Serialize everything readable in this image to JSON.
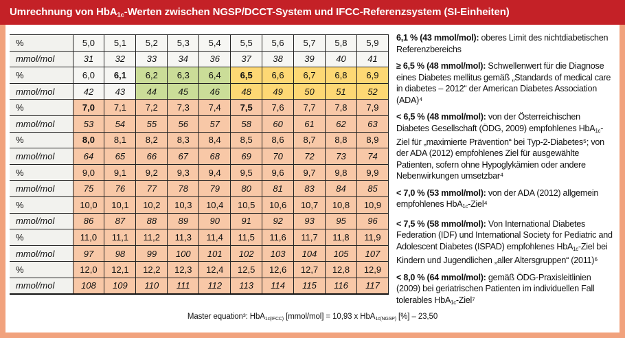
{
  "colors": {
    "header_red": "#c42127",
    "frame_salmon": "#f1a27d",
    "cell_green": "#cbdd98",
    "cell_orange": "#fdd874",
    "cell_salmon": "#f8c8a7",
    "label_gray": "#f2f2ee",
    "cell_plain": "#f6f6f3"
  },
  "title_segments": [
    {
      "t": "Umrechnung von HbA"
    },
    {
      "t": "1c",
      "sub": true
    },
    {
      "t": "-Werten zwischen NGSP/DCCT-System und IFCC-Referenzsystem (SI-Einheiten)"
    }
  ],
  "table": {
    "unit_percent": "%",
    "unit_mmol": "mmol/mol",
    "rows": [
      {
        "label": "%",
        "italic": false,
        "bg": "w",
        "bold": [],
        "values": [
          "5,0",
          "5,1",
          "5,2",
          "5,3",
          "5,4",
          "5,5",
          "5,6",
          "5,7",
          "5,8",
          "5,9"
        ]
      },
      {
        "label": "mmol/mol",
        "italic": true,
        "bg": "w",
        "bold": [],
        "values": [
          "31",
          "32",
          "33",
          "34",
          "36",
          "37",
          "38",
          "39",
          "40",
          "41"
        ]
      },
      {
        "label": "%",
        "italic": false,
        "bg": [
          "w",
          "w",
          "g",
          "g",
          "g",
          "o",
          "o",
          "o",
          "o",
          "o"
        ],
        "bold": [
          1,
          5
        ],
        "values": [
          "6,0",
          "6,1",
          "6,2",
          "6,3",
          "6,4",
          "6,5",
          "6,6",
          "6,7",
          "6,8",
          "6,9"
        ]
      },
      {
        "label": "mmol/mol",
        "italic": true,
        "bg": [
          "w",
          "w",
          "g",
          "g",
          "g",
          "o",
          "o",
          "o",
          "o",
          "o"
        ],
        "bold": [],
        "values": [
          "42",
          "43",
          "44",
          "45",
          "46",
          "48",
          "49",
          "50",
          "51",
          "52"
        ]
      },
      {
        "label": "%",
        "italic": false,
        "bg": "s",
        "bold": [
          0,
          5
        ],
        "values": [
          "7,0",
          "7,1",
          "7,2",
          "7,3",
          "7,4",
          "7,5",
          "7,6",
          "7,7",
          "7,8",
          "7,9"
        ]
      },
      {
        "label": "mmol/mol",
        "italic": true,
        "bg": "s",
        "bold": [],
        "values": [
          "53",
          "54",
          "55",
          "56",
          "57",
          "58",
          "60",
          "61",
          "62",
          "63"
        ]
      },
      {
        "label": "%",
        "italic": false,
        "bg": "s",
        "bold": [
          0
        ],
        "values": [
          "8,0",
          "8,1",
          "8,2",
          "8,3",
          "8,4",
          "8,5",
          "8,6",
          "8,7",
          "8,8",
          "8,9"
        ]
      },
      {
        "label": "mmol/mol",
        "italic": true,
        "bg": "s",
        "bold": [],
        "values": [
          "64",
          "65",
          "66",
          "67",
          "68",
          "69",
          "70",
          "72",
          "73",
          "74"
        ]
      },
      {
        "label": "%",
        "italic": false,
        "bg": "s",
        "bold": [],
        "values": [
          "9,0",
          "9,1",
          "9,2",
          "9,3",
          "9,4",
          "9,5",
          "9,6",
          "9,7",
          "9,8",
          "9,9"
        ]
      },
      {
        "label": "mmol/mol",
        "italic": true,
        "bg": "s",
        "bold": [],
        "values": [
          "75",
          "76",
          "77",
          "78",
          "79",
          "80",
          "81",
          "83",
          "84",
          "85"
        ]
      },
      {
        "label": "%",
        "italic": false,
        "bg": "s",
        "bold": [],
        "values": [
          "10,0",
          "10,1",
          "10,2",
          "10,3",
          "10,4",
          "10,5",
          "10,6",
          "10,7",
          "10,8",
          "10,9"
        ]
      },
      {
        "label": "mmol/mol",
        "italic": true,
        "bg": "s",
        "bold": [],
        "values": [
          "86",
          "87",
          "88",
          "89",
          "90",
          "91",
          "92",
          "93",
          "95",
          "96"
        ]
      },
      {
        "label": "%",
        "italic": false,
        "bg": "s",
        "bold": [],
        "values": [
          "11,0",
          "11,1",
          "11,2",
          "11,3",
          "11,4",
          "11,5",
          "11,6",
          "11,7",
          "11,8",
          "11,9"
        ]
      },
      {
        "label": "mmol/mol",
        "italic": true,
        "bg": "s",
        "bold": [],
        "values": [
          "97",
          "98",
          "99",
          "100",
          "101",
          "102",
          "103",
          "104",
          "105",
          "107"
        ]
      },
      {
        "label": "%",
        "italic": false,
        "bg": "s",
        "bold": [],
        "values": [
          "12,0",
          "12,1",
          "12,2",
          "12,3",
          "12,4",
          "12,5",
          "12,6",
          "12,7",
          "12,8",
          "12,9"
        ]
      },
      {
        "label": "mmol/mol",
        "italic": true,
        "bg": "s",
        "bold": [],
        "values": [
          "108",
          "109",
          "110",
          "111",
          "112",
          "113",
          "114",
          "115",
          "116",
          "117"
        ]
      }
    ]
  },
  "equation_segments": [
    {
      "t": "Master equation³: HbA"
    },
    {
      "t": "1c(IFCC)",
      "sub": true
    },
    {
      "t": " [mmol/mol] = 10,93 x HbA"
    },
    {
      "t": "1c(NGSP)",
      "sub": true
    },
    {
      "t": " [%] – 23,50"
    }
  ],
  "notes": [
    {
      "segments": [
        {
          "t": "6,1 % (43 mmol/mol):",
          "b": true
        },
        {
          "t": " oberes Limit des nichtdiabetischen Referenzbereichs"
        }
      ]
    },
    {
      "segments": [
        {
          "t": "≥ 6,5 % (48 mmol/mol):",
          "b": true
        },
        {
          "t": " Schwellenwert für die Diagnose eines Diabetes mellitus gemäß „Standards of medical care in diabetes – 2012“ der American Diabetes Association (ADA)⁴"
        }
      ]
    },
    {
      "segments": [
        {
          "t": "< 6,5 % (48 mmol/mol):",
          "b": true
        },
        {
          "t": " von der Österreichischen Diabetes Gesellschaft (ÖDG, 2009) empfohlenes HbA"
        },
        {
          "t": "1c",
          "sub": true
        },
        {
          "t": "-Ziel für „maximierte Prävention“ bei Typ-2-Diabetes⁵; von der ADA (2012) empfohlenes Ziel für ausgewählte Patienten, sofern ohne Hypoglykämien oder andere Nebenwirkungen umsetzbar⁴"
        }
      ]
    },
    {
      "segments": [
        {
          "t": "< 7,0 % (53 mmol/mol):",
          "b": true
        },
        {
          "t": " von der ADA (2012) allgemein empfohlenes HbA"
        },
        {
          "t": "1c",
          "sub": true
        },
        {
          "t": "-Ziel⁴"
        }
      ]
    },
    {
      "segments": [
        {
          "t": "< 7,5 % (58 mmol/mol):",
          "b": true
        },
        {
          "t": " Von International Diabetes Federation (IDF) und International Society for Pediatric and Adolescent Diabetes (ISPAD) empfohlenes HbA"
        },
        {
          "t": "1c",
          "sub": true
        },
        {
          "t": "-Ziel bei Kindern und Jugendlichen „aller Altersgruppen“ (2011)⁶"
        }
      ]
    },
    {
      "segments": [
        {
          "t": "< 8,0 % (64 mmol/mol):",
          "b": true
        },
        {
          "t": " gemäß ÖDG-Praxisleitlinien (2009) bei geriatrischen Patienten im individuellen Fall tolerables HbA"
        },
        {
          "t": "1c",
          "sub": true
        },
        {
          "t": "-Ziel⁷"
        }
      ]
    }
  ]
}
